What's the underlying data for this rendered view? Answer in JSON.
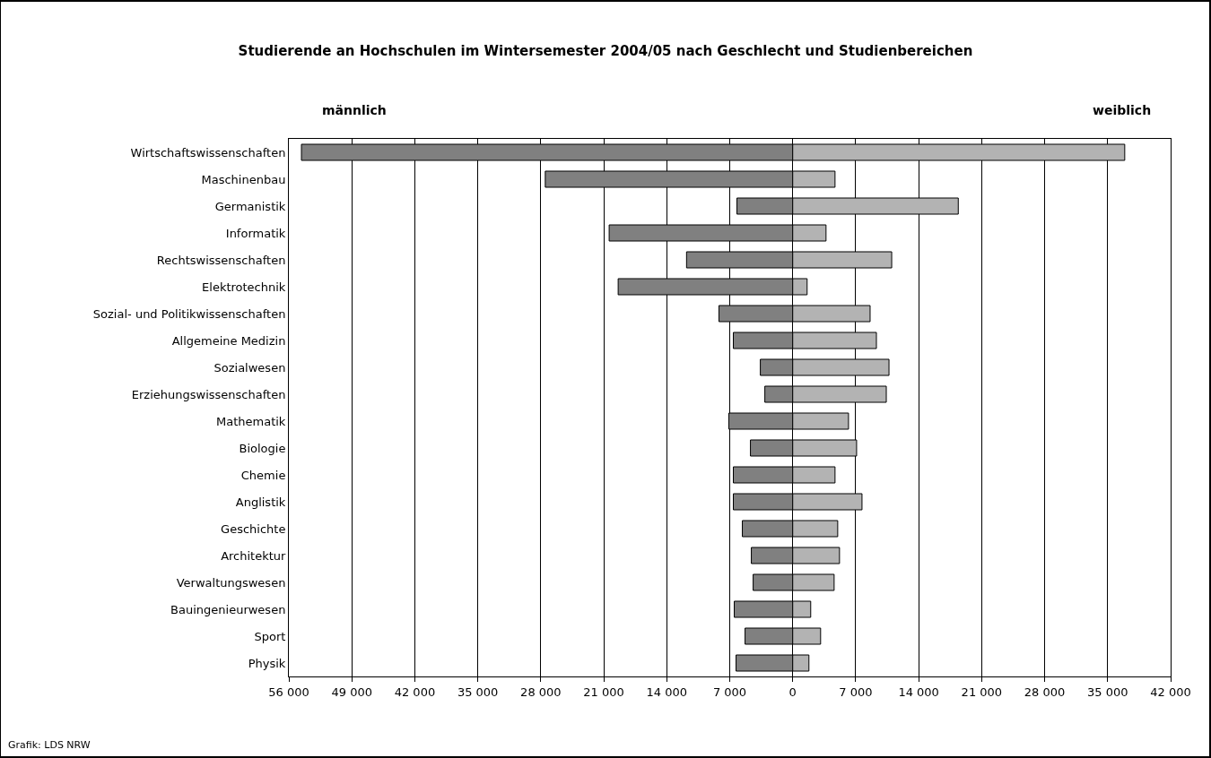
{
  "chart_data": {
    "type": "bar",
    "orientation": "horizontal",
    "stacked": true,
    "title": "Studierende an Hochschulen im Wintersemester 2004/05 nach Geschlecht und Studienbereichen",
    "categories": [
      "Wirtschaftswissenschaften",
      "Maschinenbau",
      "Germanistik",
      "Informatik",
      "Rechtswissenschaften",
      "Elektrotechnik",
      "Sozial- und Politikwissenschaften",
      "Allgemeine Medizin",
      "Sozialwesen",
      "Erziehungswissenschaften",
      "Mathematik",
      "Biologie",
      "Chemie",
      "Anglistik",
      "Geschichte",
      "Architektur",
      "Verwaltungswesen",
      "Bauingenieurwesen",
      "Sport",
      "Physik"
    ],
    "series": [
      {
        "name": "männlich",
        "color": "#808080",
        "values": [
          -54600,
          -27500,
          -6200,
          -20400,
          -11800,
          -19400,
          -8200,
          -6600,
          -3600,
          -3100,
          -7100,
          -4700,
          -6600,
          -6600,
          -5600,
          -4600,
          -4400,
          -6500,
          -5300,
          -6300
        ]
      },
      {
        "name": "weiblich",
        "color": "#b3b3b3",
        "values": [
          36900,
          4700,
          18400,
          3700,
          11000,
          1600,
          8600,
          9300,
          10700,
          10400,
          6200,
          7100,
          4700,
          7700,
          5000,
          5200,
          4600,
          2000,
          3100,
          1800
        ]
      }
    ],
    "xlim": [
      -56000,
      42000
    ],
    "xticks": [
      {
        "value": -56000,
        "label": "56 000"
      },
      {
        "value": -49000,
        "label": "49 000"
      },
      {
        "value": -42000,
        "label": "42 000"
      },
      {
        "value": -35000,
        "label": "35 000"
      },
      {
        "value": -28000,
        "label": "28 000"
      },
      {
        "value": -21000,
        "label": "21 000"
      },
      {
        "value": -14000,
        "label": "14 000"
      },
      {
        "value": -7000,
        "label": "7 000"
      },
      0,
      {
        "value": 7000,
        "label": "7 000"
      },
      {
        "value": 14000,
        "label": "14 000"
      },
      {
        "value": 21000,
        "label": "21 000"
      },
      {
        "value": 28000,
        "label": "28 000"
      },
      {
        "value": 35000,
        "label": "35 000"
      },
      {
        "value": 42000,
        "label": "42 000"
      }
    ],
    "grid": "x",
    "legend": false,
    "annotations": [
      "Grafik: LDS NRW"
    ]
  }
}
